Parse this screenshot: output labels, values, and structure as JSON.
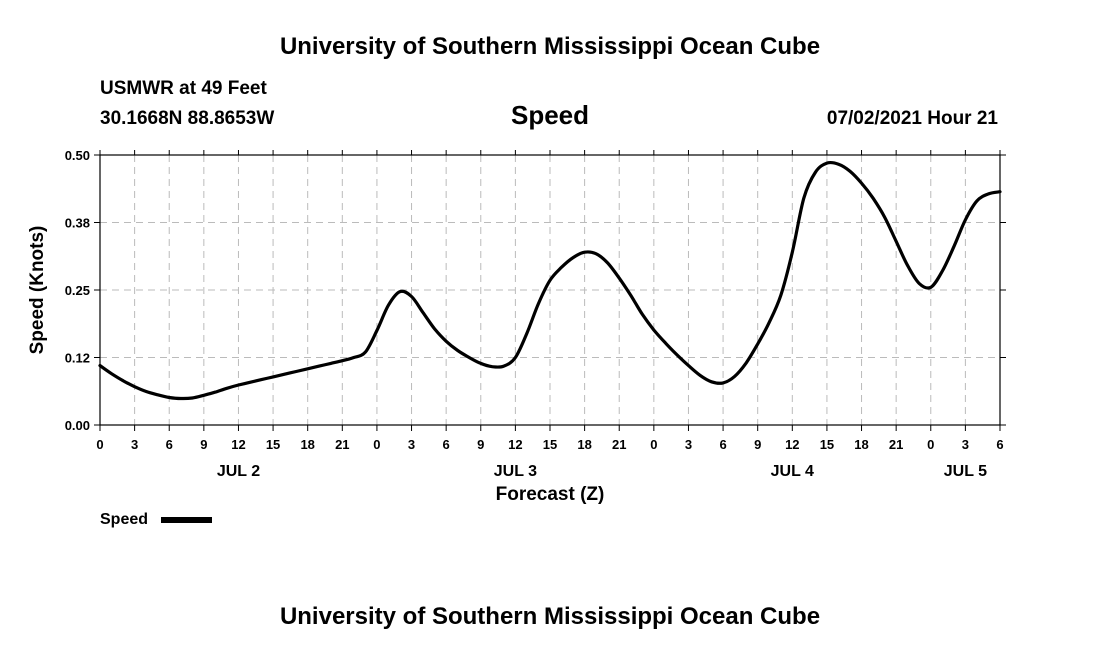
{
  "header": {
    "title": "University of Southern Mississippi Ocean Cube",
    "station": "USMWR at 49 Feet",
    "coordinates": "30.1668N  88.8653W",
    "variable": "Speed",
    "timestamp": "07/02/2021 Hour 21"
  },
  "footer": {
    "title": "University of Southern Mississippi Ocean Cube"
  },
  "legend": {
    "label": "Speed"
  },
  "colors": {
    "line": "#000000",
    "grid": "#bbbbbb",
    "background": "#ffffff"
  },
  "chart_data": {
    "type": "line",
    "title": "Speed",
    "xlabel": "Forecast (Z)",
    "ylabel": "Speed (Knots)",
    "ylim": [
      0,
      0.5
    ],
    "yticks": [
      0,
      0.125,
      0.25,
      0.375,
      0.5
    ],
    "ytick_labels": [
      "0.00",
      "0.12",
      "0.25",
      "0.38",
      "0.50"
    ],
    "xlim": [
      0,
      78
    ],
    "xticks": [
      0,
      3,
      6,
      9,
      12,
      15,
      18,
      21,
      24,
      27,
      30,
      33,
      36,
      39,
      42,
      45,
      48,
      51,
      54,
      57,
      60,
      63,
      66,
      69,
      72,
      75,
      78
    ],
    "xtick_labels": [
      "0",
      "3",
      "6",
      "9",
      "12",
      "15",
      "18",
      "21",
      "0",
      "3",
      "6",
      "9",
      "12",
      "15",
      "18",
      "21",
      "0",
      "3",
      "6",
      "9",
      "12",
      "15",
      "18",
      "21",
      "0",
      "3",
      "6"
    ],
    "day_labels": [
      {
        "label": "JUL 2",
        "x": 12
      },
      {
        "label": "JUL 3",
        "x": 36
      },
      {
        "label": "JUL 4",
        "x": 60
      },
      {
        "label": "JUL 5",
        "x": 75
      }
    ],
    "grid": true,
    "legend_position": "bottom-left",
    "series": [
      {
        "name": "Speed",
        "x": [
          0,
          1,
          2,
          3,
          4,
          5,
          6,
          7,
          8,
          9,
          10,
          11,
          12,
          13,
          14,
          15,
          16,
          17,
          18,
          19,
          20,
          21,
          22,
          23,
          24,
          25,
          26,
          27,
          28,
          29,
          30,
          31,
          32,
          33,
          34,
          35,
          36,
          37,
          38,
          39,
          40,
          41,
          42,
          43,
          44,
          45,
          46,
          47,
          48,
          49,
          50,
          51,
          52,
          53,
          54,
          55,
          56,
          57,
          58,
          59,
          60,
          61,
          62,
          63,
          64,
          65,
          66,
          67,
          68,
          69,
          70,
          71,
          72,
          73,
          74,
          75,
          76,
          77,
          78
        ],
        "values": [
          0.11,
          0.095,
          0.082,
          0.071,
          0.062,
          0.056,
          0.051,
          0.049,
          0.05,
          0.055,
          0.061,
          0.068,
          0.074,
          0.079,
          0.084,
          0.089,
          0.094,
          0.099,
          0.104,
          0.109,
          0.114,
          0.119,
          0.125,
          0.135,
          0.175,
          0.222,
          0.247,
          0.238,
          0.208,
          0.178,
          0.155,
          0.138,
          0.125,
          0.114,
          0.108,
          0.109,
          0.125,
          0.17,
          0.225,
          0.268,
          0.292,
          0.31,
          0.32,
          0.317,
          0.3,
          0.272,
          0.24,
          0.205,
          0.176,
          0.152,
          0.13,
          0.11,
          0.092,
          0.08,
          0.078,
          0.09,
          0.115,
          0.15,
          0.19,
          0.24,
          0.32,
          0.42,
          0.468,
          0.485,
          0.483,
          0.47,
          0.448,
          0.42,
          0.385,
          0.34,
          0.295,
          0.262,
          0.255,
          0.285,
          0.33,
          0.38,
          0.415,
          0.428,
          0.432
        ]
      }
    ]
  }
}
